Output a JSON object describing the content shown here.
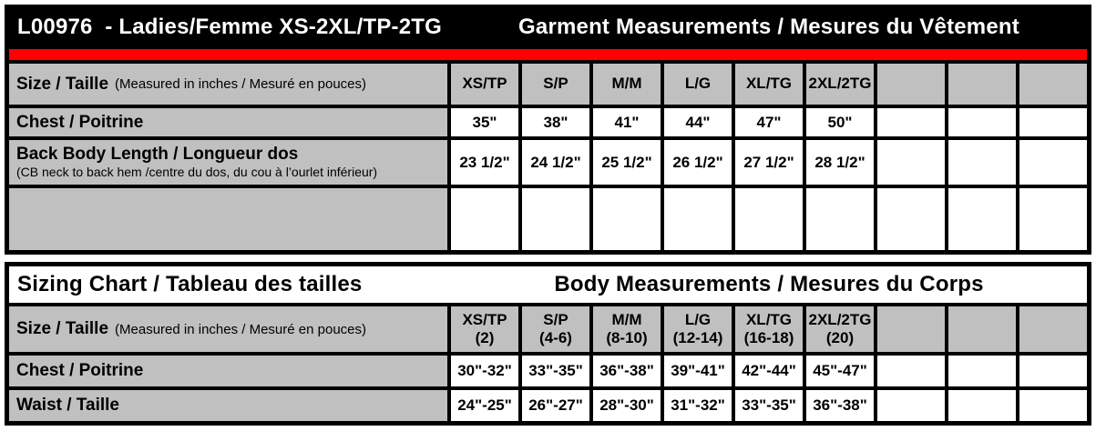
{
  "colors": {
    "stripe_red": "#FF0000",
    "cell_gray": "#C0C0C0",
    "header_black": "#000000",
    "grid_black": "#000000"
  },
  "garment_table": {
    "title_left": "L00976  - Ladies/Femme XS-2XL/TP-2TG",
    "title_right": "Garment Measurements / Mesures du Vêtement",
    "size_header": {
      "label": "Size / Taille",
      "note": "(Measured in inches / Mesuré en pouces)",
      "columns": [
        "XS/TP",
        "S/P",
        "M/M",
        "L/G",
        "XL/TG",
        "2XL/2TG",
        "",
        "",
        ""
      ]
    },
    "rows": [
      {
        "label": "Chest / Poitrine",
        "sublabel": "",
        "values": [
          "35\"",
          "38\"",
          "41\"",
          "44\"",
          "47\"",
          "50\"",
          "",
          "",
          ""
        ]
      },
      {
        "label": "Back Body Length / Longueur dos",
        "sublabel": "(CB neck to back hem /centre du dos, du cou à l’ourlet inférieur)",
        "values": [
          "23 1/2\"",
          "24 1/2\"",
          "25 1/2\"",
          "26 1/2\"",
          "27 1/2\"",
          "28 1/2\"",
          "",
          "",
          ""
        ]
      },
      {
        "label": "",
        "sublabel": "",
        "values": [
          "",
          "",
          "",
          "",
          "",
          "",
          "",
          "",
          ""
        ]
      }
    ]
  },
  "sizing_table": {
    "title_left": "Sizing Chart / Tableau des tailles",
    "title_right": "Body Measurements / Mesures du Corps",
    "size_header": {
      "label": "Size / Taille",
      "note": "(Measured in inches / Mesuré en pouces)",
      "columns": [
        {
          "size": "XS/TP",
          "range": "(2)"
        },
        {
          "size": "S/P",
          "range": "(4-6)"
        },
        {
          "size": "M/M",
          "range": "(8-10)"
        },
        {
          "size": "L/G",
          "range": "(12-14)"
        },
        {
          "size": "XL/TG",
          "range": "(16-18)"
        },
        {
          "size": "2XL/2TG",
          "range": "(20)"
        },
        {
          "size": "",
          "range": ""
        },
        {
          "size": "",
          "range": ""
        },
        {
          "size": "",
          "range": ""
        }
      ]
    },
    "rows": [
      {
        "label": "Chest / Poitrine",
        "values": [
          "30\"-32\"",
          "33\"-35\"",
          "36\"-38\"",
          "39\"-41\"",
          "42\"-44\"",
          "45\"-47\"",
          "",
          "",
          ""
        ]
      },
      {
        "label": "Waist / Taille",
        "values": [
          "24\"-25\"",
          "26\"-27\"",
          "28\"-30\"",
          "31\"-32\"",
          "33\"-35\"",
          "36\"-38\"",
          "",
          "",
          ""
        ]
      }
    ]
  }
}
